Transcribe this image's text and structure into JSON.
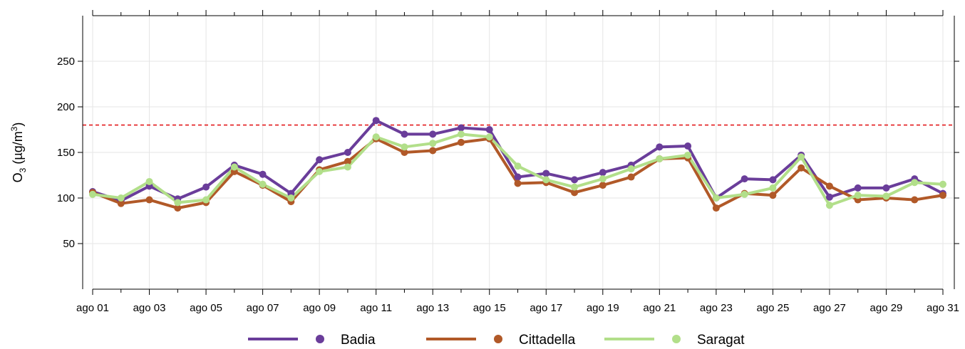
{
  "chart_data": {
    "type": "line",
    "ylabel": {
      "base": "O",
      "sub": "3",
      "unit_prefix": " (µg/m",
      "unit_sup": "3",
      "unit_suffix": ")"
    },
    "ylim": [
      0,
      300
    ],
    "y_ticks": [
      50,
      100,
      150,
      200,
      250
    ],
    "x_tick_labels": [
      "ago 01",
      "ago 03",
      "ago 05",
      "ago 07",
      "ago 09",
      "ago 11",
      "ago 13",
      "ago 15",
      "ago 17",
      "ago 19",
      "ago 21",
      "ago 23",
      "ago 25",
      "ago 27",
      "ago 29",
      "ago 31"
    ],
    "x": [
      1,
      2,
      3,
      4,
      5,
      6,
      7,
      8,
      9,
      10,
      11,
      12,
      13,
      14,
      15,
      16,
      17,
      18,
      19,
      20,
      21,
      22,
      23,
      24,
      25,
      26,
      27,
      28,
      29,
      30,
      31
    ],
    "threshold": {
      "value": 180,
      "color": "#e41a1c",
      "style": "dashed"
    },
    "grid": true,
    "legend_position": "bottom",
    "series": [
      {
        "name": "Badia",
        "color": "#6a3d9a",
        "values": [
          107,
          97,
          113,
          99,
          112,
          136,
          126,
          105,
          142,
          150,
          185,
          170,
          170,
          177,
          175,
          123,
          127,
          120,
          128,
          136,
          156,
          157,
          100,
          121,
          120,
          147,
          101,
          111,
          111,
          121,
          105
        ]
      },
      {
        "name": "Cittadella",
        "color": "#b15928",
        "values": [
          106,
          94,
          98,
          89,
          95,
          129,
          114,
          96,
          131,
          140,
          165,
          150,
          152,
          161,
          165,
          116,
          117,
          106,
          114,
          123,
          143,
          144,
          89,
          105,
          103,
          133,
          113,
          98,
          100,
          98,
          103
        ]
      },
      {
        "name": "Saragat",
        "color": "#b2df8a",
        "values": [
          104,
          100,
          118,
          95,
          98,
          134,
          115,
          100,
          129,
          134,
          167,
          156,
          160,
          170,
          167,
          135,
          120,
          112,
          121,
          132,
          143,
          147,
          100,
          104,
          111,
          145,
          92,
          103,
          102,
          117,
          115
        ]
      }
    ]
  }
}
